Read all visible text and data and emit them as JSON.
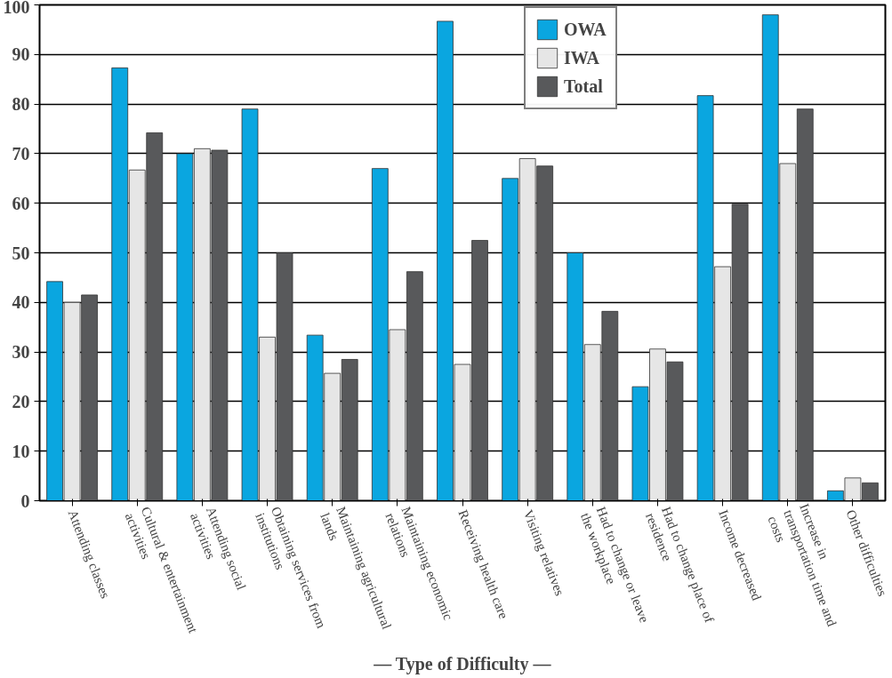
{
  "chart_data": {
    "type": "bar",
    "xlabel": "— Type of Difficulty —",
    "categories": [
      "Attending classes",
      "Cultural & entertainment activities",
      "Attending social activities",
      "Obtaining services from institutions",
      "Maintaining agricultural lands",
      "Maintaining economic relations",
      "Receiving health care",
      "Visiting relatives",
      "Had to change or leave the workplace",
      "Had to change place of residence",
      "Income decreased",
      "Increase in transportation time and costs",
      "Other difficulties"
    ],
    "series": [
      {
        "name": "OWA",
        "color": "#0aa6e0",
        "values": [
          44.2,
          87.3,
          70,
          79,
          33.4,
          67,
          96.7,
          65,
          50,
          23,
          81.7,
          98,
          2
        ]
      },
      {
        "name": "IWA",
        "color": "#e6e6e6",
        "values": [
          40,
          66.7,
          71,
          33,
          25.7,
          34.5,
          27.5,
          69,
          31.5,
          30.6,
          47.2,
          68,
          4.6
        ]
      },
      {
        "name": "Total",
        "color": "#58595b",
        "values": [
          41.5,
          74.2,
          70.7,
          50,
          28.5,
          46.2,
          52.5,
          67.5,
          38.2,
          28,
          59.8,
          79,
          3.6
        ]
      }
    ],
    "ylim": [
      0,
      100
    ],
    "yticks": [
      0,
      10,
      20,
      30,
      40,
      50,
      60,
      70,
      80,
      90,
      100
    ],
    "grid": "y",
    "legend": "top"
  }
}
